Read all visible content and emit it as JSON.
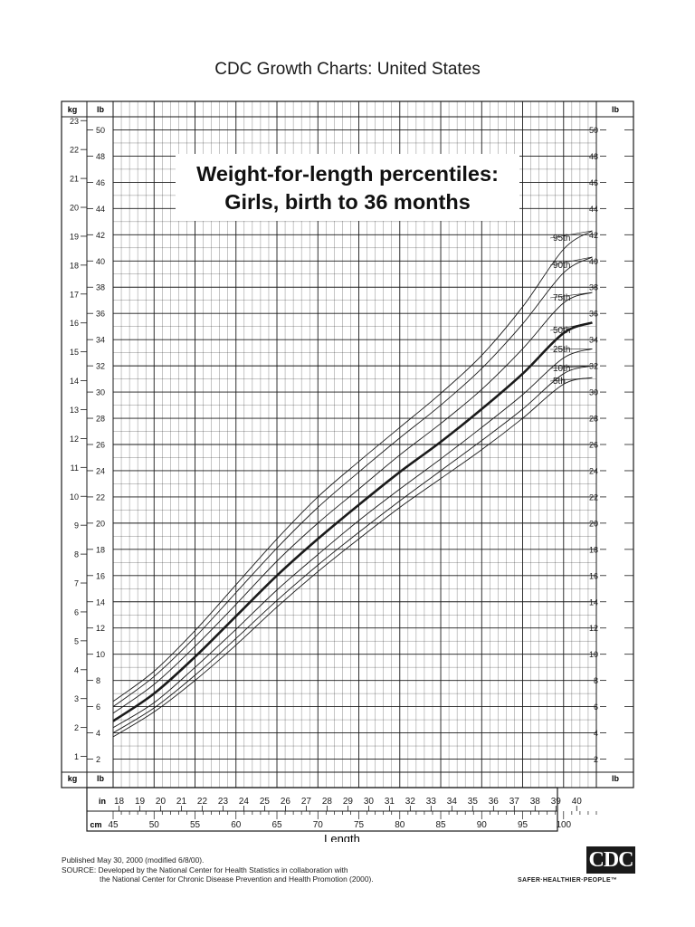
{
  "page": {
    "title": "CDC Growth Charts: United States",
    "footer_line1": "Published May 30, 2000 (modified 6/8/00).",
    "footer_line2": "SOURCE: Developed by the National Center for Health Statistics in collaboration with",
    "footer_line3": "the National Center for Chronic Disease Prevention and Health Promotion (2000).",
    "logo_text": "CDC",
    "logo_tagline": "SAFER·HEALTHIER·PEOPLE™"
  },
  "chart_data": {
    "type": "line",
    "title_line1": "Weight-for-length percentiles:",
    "title_line2": "Girls, birth to 36 months",
    "xlabel": "Length",
    "x_unit_in": "in",
    "x_unit_cm": "cm",
    "y_unit_kg": "kg",
    "y_unit_lb": "lb",
    "xlim_cm": [
      45,
      104
    ],
    "ylim_lb": [
      1,
      51
    ],
    "cm_ticks": [
      45,
      50,
      55,
      60,
      65,
      70,
      75,
      80,
      85,
      90,
      95,
      100
    ],
    "in_ticks": [
      18,
      19,
      20,
      21,
      22,
      23,
      24,
      25,
      26,
      27,
      28,
      29,
      30,
      31,
      32,
      33,
      34,
      35,
      36,
      37,
      38,
      39,
      40
    ],
    "lb_ticks": [
      2,
      4,
      6,
      8,
      10,
      12,
      14,
      16,
      18,
      20,
      22,
      24,
      26,
      28,
      30,
      32,
      34,
      36,
      38,
      40,
      42,
      44,
      46,
      48,
      50
    ],
    "kg_ticks": [
      1,
      2,
      3,
      4,
      5,
      6,
      7,
      8,
      9,
      10,
      11,
      12,
      13,
      14,
      15,
      16,
      17,
      18,
      19,
      20,
      21,
      22,
      23
    ],
    "grid": true,
    "x": [
      45,
      50,
      55,
      60,
      65,
      70,
      75,
      80,
      85,
      90,
      95,
      100,
      103.5
    ],
    "series": [
      {
        "name": "95th",
        "bold": false,
        "values": [
          6.4,
          8.7,
          11.8,
          15.3,
          18.8,
          22.0,
          24.7,
          27.3,
          29.9,
          32.8,
          36.5,
          40.9,
          42.3
        ]
      },
      {
        "name": "90th",
        "bold": false,
        "values": [
          6.0,
          8.3,
          11.3,
          14.7,
          18.1,
          21.2,
          23.9,
          26.5,
          29.0,
          31.8,
          35.2,
          39.1,
          40.3
        ]
      },
      {
        "name": "75th",
        "bold": false,
        "values": [
          5.5,
          7.7,
          10.6,
          13.8,
          17.1,
          20.0,
          22.6,
          25.2,
          27.6,
          30.2,
          33.3,
          36.8,
          37.6
        ]
      },
      {
        "name": "50th",
        "bold": true,
        "values": [
          4.9,
          7.0,
          9.8,
          12.9,
          16.0,
          18.8,
          21.4,
          23.9,
          26.2,
          28.7,
          31.4,
          34.5,
          35.3
        ]
      },
      {
        "name": "25th",
        "bold": false,
        "values": [
          4.4,
          6.3,
          9.0,
          11.9,
          14.9,
          17.6,
          20.2,
          22.6,
          24.9,
          27.3,
          29.8,
          32.6,
          33.3
        ]
      },
      {
        "name": "10th",
        "bold": false,
        "values": [
          4.0,
          5.9,
          8.4,
          11.2,
          14.1,
          16.8,
          19.3,
          21.7,
          24.0,
          26.3,
          28.7,
          31.4,
          32.0
        ]
      },
      {
        "name": "5th",
        "bold": false,
        "values": [
          3.7,
          5.6,
          8.0,
          10.7,
          13.6,
          16.3,
          18.8,
          21.2,
          23.4,
          25.6,
          28.0,
          30.6,
          31.1
        ]
      }
    ]
  }
}
